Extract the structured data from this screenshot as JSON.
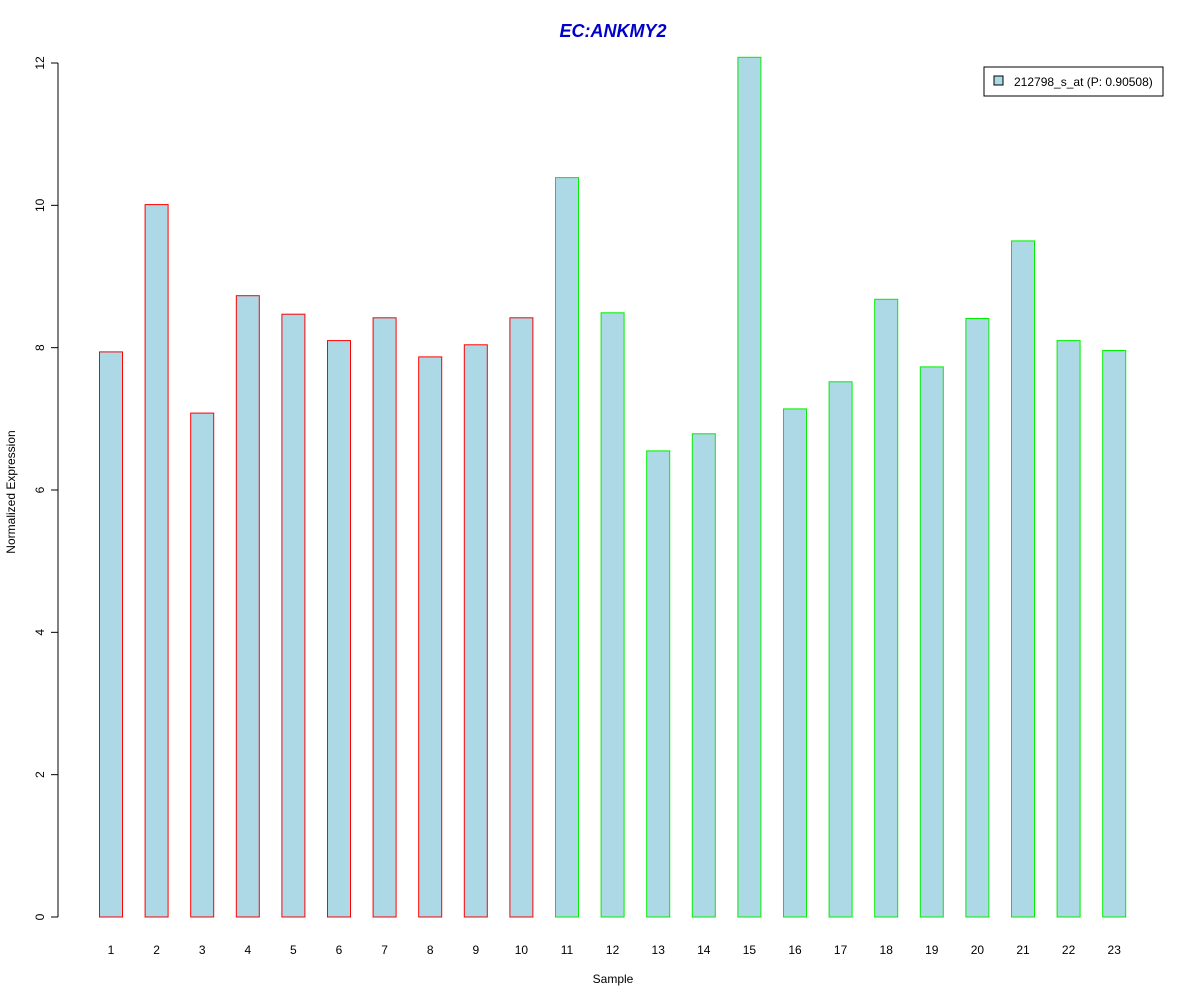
{
  "chart_data": {
    "type": "bar",
    "title": "EC:ANKMY2",
    "xlabel": "Sample",
    "ylabel": "Normalized Expression",
    "ylim": [
      0,
      12
    ],
    "yticks": [
      0,
      2,
      4,
      6,
      8,
      10,
      12
    ],
    "categories": [
      "1",
      "2",
      "3",
      "4",
      "5",
      "6",
      "7",
      "8",
      "9",
      "10",
      "11",
      "12",
      "13",
      "14",
      "15",
      "16",
      "17",
      "18",
      "19",
      "20",
      "21",
      "22",
      "23"
    ],
    "series": [
      {
        "name": "212798_s_at (P: 0.90508)",
        "values": [
          7.94,
          10.01,
          7.08,
          8.73,
          8.47,
          8.1,
          8.42,
          7.87,
          8.04,
          8.42,
          10.39,
          8.49,
          6.55,
          6.79,
          12.08,
          7.14,
          7.52,
          8.68,
          7.73,
          8.41,
          9.5,
          8.1,
          7.96
        ]
      }
    ],
    "groups": [
      "red",
      "red",
      "red",
      "red",
      "red",
      "red",
      "red",
      "red",
      "red",
      "red",
      "green",
      "green",
      "green",
      "green",
      "green",
      "green",
      "green",
      "green",
      "green",
      "green",
      "green",
      "green",
      "green"
    ],
    "legend_position": "top-right",
    "grid": false,
    "colors": {
      "bar_fill": "#add8e6",
      "red": "#ff0000",
      "green": "#00ee00",
      "title": "#0000cd",
      "axis": "#000000"
    }
  }
}
